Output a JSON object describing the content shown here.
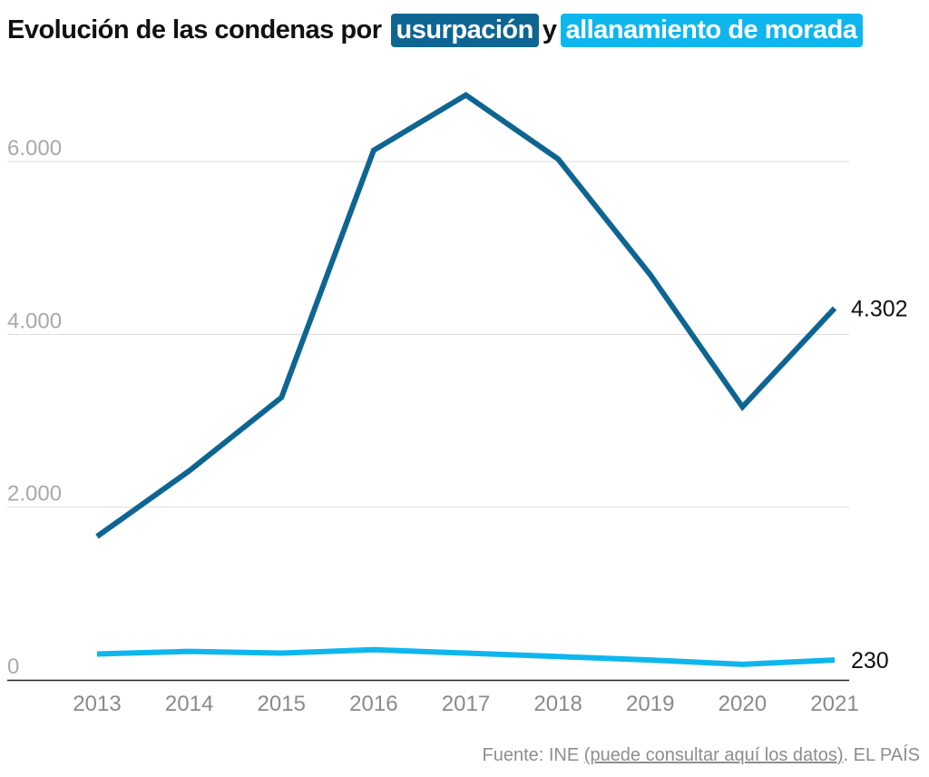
{
  "title": {
    "prefix": "Evolución de las condenas por",
    "series_a_label": "usurpación",
    "connector": "y",
    "series_b_label": "allanamiento de morada"
  },
  "colors": {
    "usurpacion": "#0e6592",
    "allanamiento": "#0fb6ee",
    "grid": "#dddddd",
    "baseline": "#222222"
  },
  "chart_data": {
    "type": "line",
    "x": [
      2013,
      2014,
      2015,
      2016,
      2017,
      2018,
      2019,
      2020,
      2021
    ],
    "x_tick_labels": [
      "2013",
      "2014",
      "2015",
      "2016",
      "2017",
      "2018",
      "2019",
      "2020",
      "2021"
    ],
    "y_ticks": [
      0,
      2000,
      4000,
      6000
    ],
    "y_tick_labels": [
      "0",
      "2.000",
      "4.000",
      "6.000"
    ],
    "ylim": [
      0,
      6800
    ],
    "grid": true,
    "series": [
      {
        "name": "usurpación",
        "color": "#0e6592",
        "values": [
          1660,
          2420,
          3270,
          6130,
          6770,
          6030,
          4690,
          3160,
          4302
        ],
        "end_label": "4.302"
      },
      {
        "name": "allanamiento de morada",
        "color": "#0fb6ee",
        "values": [
          300,
          330,
          310,
          350,
          310,
          270,
          230,
          180,
          230
        ],
        "end_label": "230"
      }
    ]
  },
  "source": {
    "prefix": "Fuente: INE",
    "link_text": "(puede consultar aquí los datos)",
    "suffix": ". EL PAÍS"
  }
}
